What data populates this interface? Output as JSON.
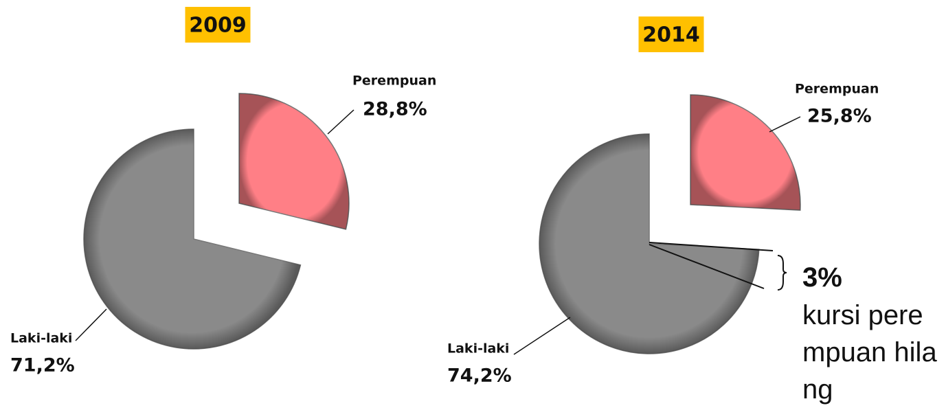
{
  "chart_data": [
    {
      "type": "pie",
      "title": "2009",
      "categories": [
        "Perempuan",
        "Laki-laki"
      ],
      "values": [
        28.8,
        71.2
      ],
      "value_labels": [
        "28,8%",
        "71,2%"
      ],
      "colors": [
        "#ff7f86",
        "#8a8a8a"
      ]
    },
    {
      "type": "pie",
      "title": "2014",
      "categories": [
        "Perempuan",
        "Laki-laki"
      ],
      "values": [
        25.8,
        74.2
      ],
      "value_labels": [
        "25,8%",
        "74,2%"
      ],
      "colors": [
        "#ff7f86",
        "#8a8a8a"
      ]
    }
  ],
  "annotation": {
    "value": "3%",
    "text": "kursi perempuan hilang"
  }
}
